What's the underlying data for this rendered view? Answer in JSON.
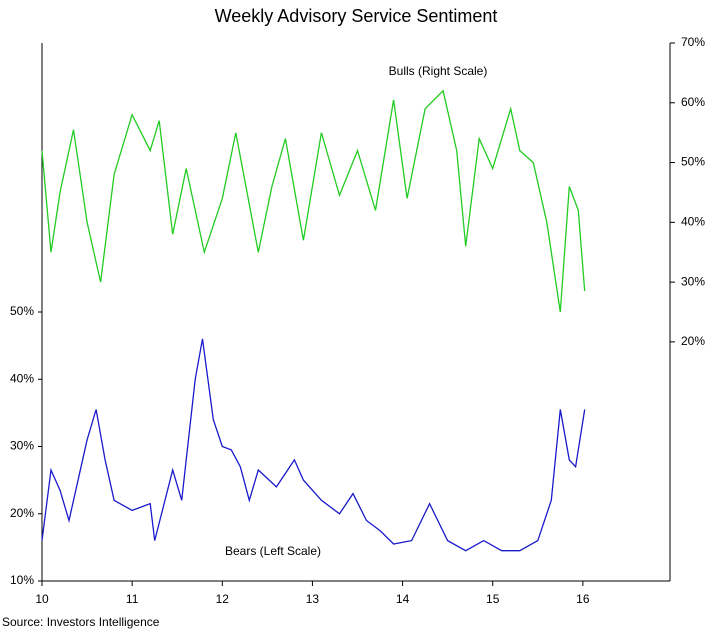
{
  "chart_data": {
    "type": "line",
    "title": "Weekly Advisory Service Sentiment",
    "source": "Source:  Investors Intelligence",
    "annotations": [
      "Bulls (Right Scale)",
      "Bears (Left Scale)"
    ],
    "xlim": [
      10,
      17
    ],
    "xticks": [
      10,
      11,
      12,
      13,
      14,
      15,
      16
    ],
    "ylim": [
      10,
      90
    ],
    "yticks": [
      {
        "value": 10,
        "label": "10%"
      },
      {
        "value": 20,
        "label": "20%"
      },
      {
        "value": 30,
        "label": "30%"
      },
      {
        "value": 40,
        "label": "40%"
      },
      {
        "value": 50,
        "label": "50%"
      }
    ],
    "y2lim": [
      -20,
      70
    ],
    "y2ticks": [
      {
        "value": 20,
        "label": "20%"
      },
      {
        "value": 30,
        "label": "30%"
      },
      {
        "value": 40,
        "label": "40%"
      },
      {
        "value": 50,
        "label": "50%"
      },
      {
        "value": 60,
        "label": "60%"
      },
      {
        "value": 70,
        "label": "70%"
      }
    ],
    "series": [
      {
        "name": "Bulls",
        "color": "#22cc22",
        "axis": "y2",
        "x": [
          10.0,
          10.1,
          10.2,
          10.35,
          10.5,
          10.65,
          10.8,
          11.0,
          11.2,
          11.3,
          11.45,
          11.6,
          11.8,
          12.0,
          12.15,
          12.4,
          12.55,
          12.7,
          12.9,
          13.1,
          13.3,
          13.5,
          13.7,
          13.9,
          14.05,
          14.25,
          14.45,
          14.6,
          14.7,
          14.85,
          15.0,
          15.2,
          15.3,
          15.45,
          15.6,
          15.75,
          15.85,
          15.95,
          16.02
        ],
        "values": [
          52,
          35,
          45,
          55.5,
          40,
          30,
          48,
          58,
          52,
          57,
          38,
          49,
          35,
          44,
          55,
          35,
          46,
          54,
          37,
          55,
          44.5,
          52,
          42,
          60.5,
          44,
          59,
          62,
          52,
          36,
          54,
          49,
          59,
          52,
          50,
          40,
          25,
          46,
          42,
          28.5
        ]
      },
      {
        "name": "Bears",
        "color": "#1a1acc",
        "axis": "y",
        "x": [
          10.0,
          10.1,
          10.2,
          10.3,
          10.5,
          10.6,
          10.7,
          10.8,
          11.0,
          11.2,
          11.25,
          11.45,
          11.55,
          11.7,
          11.78,
          11.9,
          12.0,
          12.1,
          12.2,
          12.3,
          12.4,
          12.6,
          12.8,
          12.9,
          13.1,
          13.3,
          13.45,
          13.6,
          13.75,
          13.9,
          14.1,
          14.3,
          14.5,
          14.7,
          14.9,
          15.1,
          15.3,
          15.5,
          15.65,
          15.75,
          15.85,
          15.92,
          16.02
        ],
        "values": [
          16,
          26.5,
          23.5,
          19,
          31,
          35.5,
          28,
          22,
          20.5,
          21.5,
          16,
          26.5,
          22,
          40,
          46,
          34,
          30,
          29.5,
          27,
          22,
          26.5,
          24,
          28,
          25,
          22,
          20,
          23,
          19,
          17.5,
          15.5,
          16,
          21.5,
          16,
          14.5,
          16,
          14.5,
          14.5,
          16,
          22,
          35.5,
          28,
          27,
          35.5
        ]
      }
    ]
  }
}
